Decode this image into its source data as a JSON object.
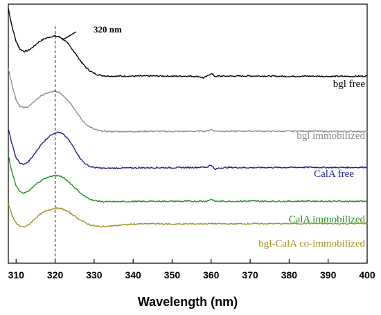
{
  "chart_data": {
    "type": "line",
    "xlabel": "Wavelength (nm)",
    "ylabel": "",
    "xlim": [
      308,
      400
    ],
    "xticks": [
      "310",
      "320",
      "330",
      "340",
      "350",
      "360",
      "370",
      "380",
      "390",
      "400"
    ],
    "yticks": "none",
    "grid": false,
    "legend": "inline labels on the right of each curve",
    "annotation": {
      "text": "320 nm",
      "x": 320
    },
    "series": [
      {
        "name": "bgl free",
        "color": "#000000",
        "x": [
          308,
          309,
          310,
          311,
          312,
          313,
          314,
          315,
          316,
          317,
          318,
          319,
          320,
          321,
          322,
          323,
          324,
          325,
          326,
          327,
          328,
          329,
          330,
          331,
          332,
          333,
          335,
          340,
          345,
          350,
          355,
          357,
          358,
          359,
          360,
          361,
          362,
          365,
          370,
          375,
          380,
          385,
          390,
          395,
          400
        ],
        "y": [
          10.0,
          9.15,
          8.5,
          8.15,
          8.05,
          8.08,
          8.2,
          8.35,
          8.5,
          8.6,
          8.67,
          8.72,
          8.75,
          8.72,
          8.62,
          8.45,
          8.25,
          8.0,
          7.75,
          7.5,
          7.3,
          7.15,
          7.05,
          6.98,
          6.95,
          6.93,
          6.92,
          6.92,
          6.93,
          6.92,
          6.92,
          6.9,
          6.84,
          6.92,
          7.05,
          6.9,
          6.92,
          6.92,
          6.93,
          6.92,
          6.91,
          6.92,
          6.91,
          6.91,
          6.92
        ]
      },
      {
        "name": "bgl immobilized",
        "color": "#8c8c8c",
        "x": [
          308,
          309,
          310,
          311,
          312,
          313,
          314,
          315,
          316,
          317,
          318,
          319,
          320,
          321,
          322,
          323,
          324,
          325,
          326,
          327,
          328,
          329,
          330,
          331,
          332,
          333,
          335,
          340,
          345,
          350,
          355,
          359,
          360,
          361,
          365,
          370,
          375,
          380,
          385,
          390,
          395,
          400
        ],
        "y": [
          7.3,
          6.5,
          5.85,
          5.55,
          5.48,
          5.52,
          5.65,
          5.82,
          5.98,
          6.08,
          6.15,
          6.2,
          6.22,
          6.18,
          6.05,
          5.88,
          5.68,
          5.42,
          5.15,
          4.9,
          4.72,
          4.6,
          4.5,
          4.45,
          4.42,
          4.41,
          4.4,
          4.4,
          4.41,
          4.4,
          4.41,
          4.42,
          4.5,
          4.42,
          4.41,
          4.42,
          4.41,
          4.41,
          4.42,
          4.4,
          4.41,
          4.4
        ]
      },
      {
        "name": "CalA free",
        "color": "#1f1f8f",
        "x": [
          308,
          309,
          310,
          311,
          312,
          313,
          314,
          315,
          316,
          317,
          318,
          319,
          320,
          321,
          322,
          323,
          324,
          325,
          326,
          327,
          328,
          329,
          330,
          331,
          332,
          333,
          335,
          340,
          345,
          350,
          355,
          359,
          360,
          361,
          362,
          365,
          370,
          375,
          380,
          385,
          390,
          395,
          400
        ],
        "y": [
          4.5,
          3.8,
          3.2,
          2.95,
          2.9,
          3.0,
          3.2,
          3.45,
          3.7,
          3.92,
          4.1,
          4.25,
          4.35,
          4.36,
          4.28,
          4.12,
          3.88,
          3.6,
          3.3,
          3.05,
          2.9,
          2.8,
          2.76,
          2.74,
          2.73,
          2.72,
          2.73,
          2.74,
          2.75,
          2.75,
          2.76,
          2.78,
          2.88,
          2.66,
          2.74,
          2.76,
          2.75,
          2.76,
          2.76,
          2.77,
          2.76,
          2.76,
          2.77
        ]
      },
      {
        "name": "CalA immobilized",
        "color": "#1c8c1c",
        "x": [
          308,
          309,
          310,
          311,
          312,
          313,
          314,
          315,
          316,
          317,
          318,
          319,
          320,
          321,
          322,
          323,
          324,
          325,
          326,
          327,
          328,
          329,
          330,
          331,
          332,
          333,
          335,
          340,
          345,
          350,
          355,
          359,
          360,
          361,
          365,
          370,
          375,
          380,
          385,
          390,
          395,
          400
        ],
        "y": [
          3.3,
          2.5,
          1.92,
          1.65,
          1.6,
          1.66,
          1.8,
          1.98,
          2.12,
          2.22,
          2.3,
          2.36,
          2.4,
          2.38,
          2.3,
          2.18,
          2.02,
          1.85,
          1.68,
          1.52,
          1.4,
          1.32,
          1.26,
          1.23,
          1.21,
          1.2,
          1.2,
          1.21,
          1.22,
          1.22,
          1.22,
          1.23,
          1.32,
          1.22,
          1.22,
          1.23,
          1.22,
          1.22,
          1.23,
          1.22,
          1.22,
          1.22
        ]
      },
      {
        "name": "bgl-CalA co-immobilized",
        "color": "#9c9020",
        "x": [
          308,
          309,
          310,
          311,
          312,
          313,
          314,
          315,
          316,
          317,
          318,
          319,
          320,
          321,
          322,
          323,
          324,
          325,
          326,
          327,
          328,
          329,
          330,
          331,
          332,
          333,
          335,
          337,
          340,
          345,
          350,
          355,
          360,
          365,
          370,
          375,
          380,
          385,
          390,
          395,
          400
        ],
        "y": [
          1.1,
          0.55,
          0.22,
          0.08,
          0.05,
          0.12,
          0.28,
          0.45,
          0.6,
          0.72,
          0.8,
          0.86,
          0.9,
          0.9,
          0.86,
          0.78,
          0.67,
          0.55,
          0.42,
          0.32,
          0.22,
          0.15,
          0.1,
          0.08,
          0.07,
          0.08,
          0.1,
          0.14,
          0.18,
          0.2,
          0.18,
          0.19,
          0.2,
          0.19,
          0.2,
          0.2,
          0.2,
          0.21,
          0.2,
          0.2,
          0.21
        ]
      }
    ]
  }
}
